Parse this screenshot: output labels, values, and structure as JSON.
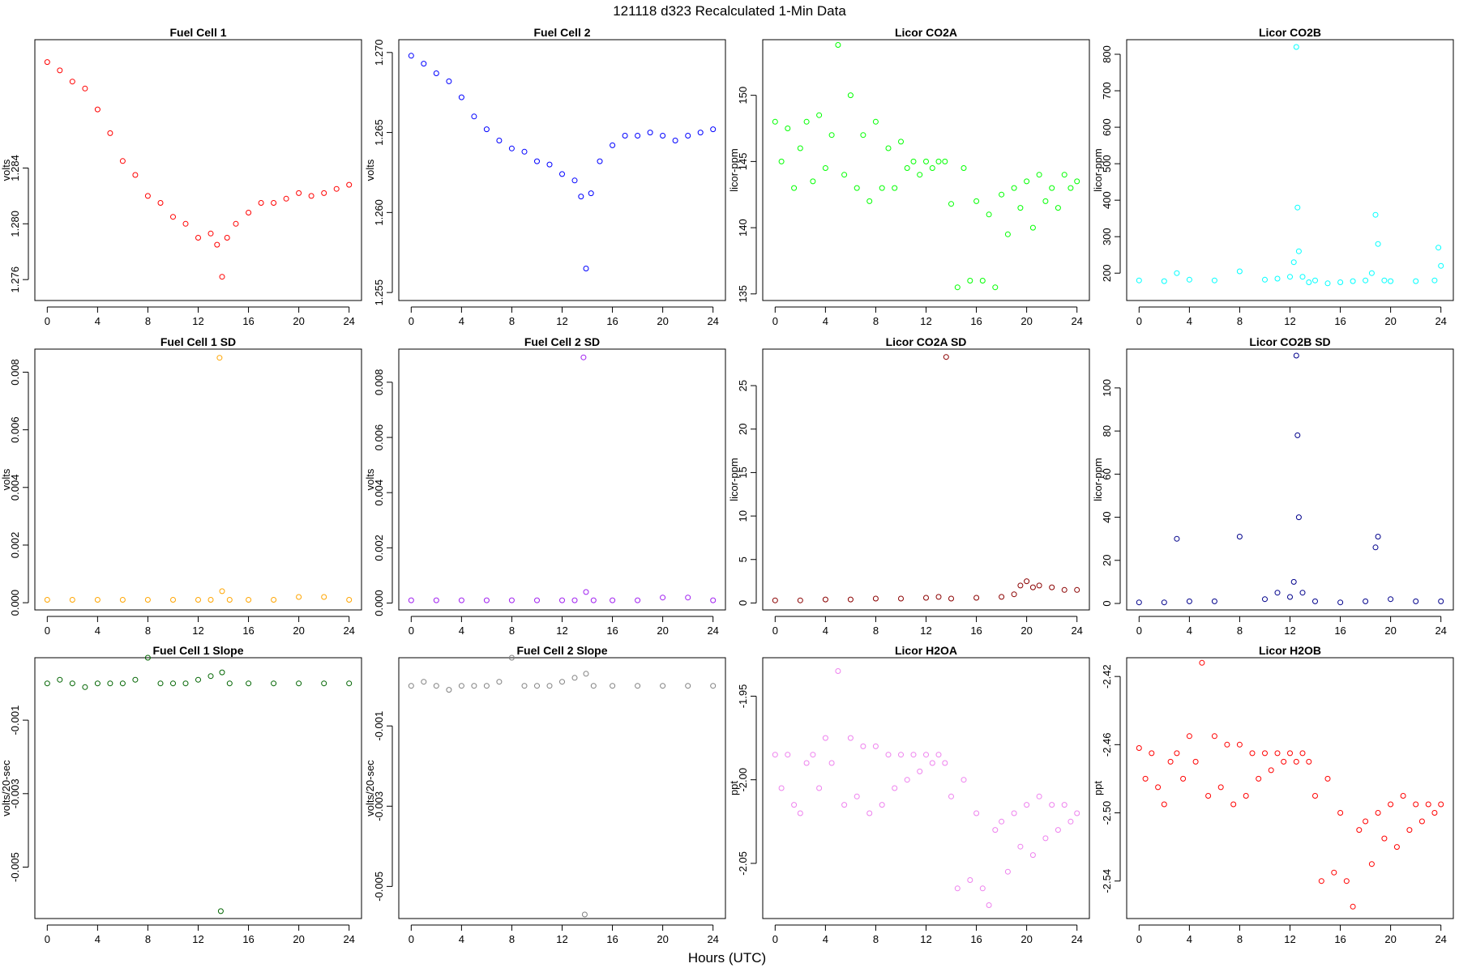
{
  "figure": {
    "title": "121118   d323   Recalculated 1-Min Data",
    "xlabel": "Hours (UTC)"
  },
  "chart_data": [
    {
      "type": "scatter",
      "title": "Fuel Cell 1",
      "ylabel": "volts",
      "color": "#ff0000",
      "xlim": [
        0,
        24
      ],
      "xticks": [
        "0",
        "4",
        "8",
        "12",
        "16",
        "20",
        "24"
      ],
      "ylim": [
        1.2745,
        1.2932
      ],
      "yticks": [
        "1.276",
        "1.280",
        "1.284"
      ],
      "series": [
        {
          "x": [
            0,
            1,
            2,
            3,
            4,
            5,
            6,
            7,
            8,
            9,
            10,
            11,
            12,
            13,
            13.5,
            13.9,
            14.3,
            15,
            16,
            17,
            18,
            19,
            20,
            21,
            22,
            23,
            24
          ],
          "y": [
            1.2916,
            1.291,
            1.2902,
            1.2897,
            1.2882,
            1.2865,
            1.2845,
            1.2835,
            1.282,
            1.2815,
            1.2805,
            1.28,
            1.279,
            1.2793,
            1.2785,
            1.2762,
            1.279,
            1.28,
            1.2808,
            1.2815,
            1.2815,
            1.2818,
            1.2822,
            1.282,
            1.2822,
            1.2825,
            1.2828
          ]
        }
      ]
    },
    {
      "type": "scatter",
      "title": "Fuel Cell 2",
      "ylabel": "volts",
      "color": "#0000ff",
      "xlim": [
        0,
        24
      ],
      "xticks": [
        "0",
        "4",
        "8",
        "12",
        "16",
        "20",
        "24"
      ],
      "ylim": [
        1.2545,
        1.2708
      ],
      "yticks": [
        "1.255",
        "1.260",
        "1.265",
        "1.270"
      ],
      "series": [
        {
          "x": [
            0,
            1,
            2,
            3,
            4,
            5,
            6,
            7,
            8,
            9,
            10,
            11,
            12,
            13,
            13.5,
            13.9,
            14.3,
            15,
            16,
            17,
            18,
            19,
            20,
            21,
            22,
            23,
            24
          ],
          "y": [
            1.2698,
            1.2693,
            1.2687,
            1.2682,
            1.2672,
            1.266,
            1.2652,
            1.2645,
            1.264,
            1.2638,
            1.2632,
            1.263,
            1.2624,
            1.262,
            1.261,
            1.2565,
            1.2612,
            1.2632,
            1.2642,
            1.2648,
            1.2648,
            1.265,
            1.2648,
            1.2645,
            1.2648,
            1.265,
            1.2652
          ]
        }
      ]
    },
    {
      "type": "scatter",
      "title": "Licor CO2A",
      "ylabel": "licor-ppm",
      "color": "#00ff00",
      "xlim": [
        0,
        24
      ],
      "xticks": [
        "0",
        "4",
        "8",
        "12",
        "16",
        "20",
        "24"
      ],
      "ylim": [
        134.5,
        154.2
      ],
      "yticks": [
        "135",
        "140",
        "145",
        "150"
      ],
      "series": [
        {
          "x": [
            0,
            0.5,
            1,
            1.5,
            2,
            2.5,
            3,
            3.5,
            4,
            4.5,
            5,
            5.5,
            6,
            6.5,
            7,
            7.5,
            8,
            8.5,
            9,
            9.5,
            10,
            10.5,
            11,
            11.5,
            12,
            12.5,
            13,
            13.5,
            14,
            14.5,
            15,
            15.5,
            16,
            16.5,
            17,
            17.5,
            18,
            18.5,
            19,
            19.5,
            20,
            20.5,
            21,
            21.5,
            22,
            22.5,
            23,
            23.5,
            24
          ],
          "y": [
            148,
            145,
            147.5,
            143,
            146,
            148,
            143.5,
            148.5,
            144.5,
            147,
            153.8,
            144,
            150,
            143,
            147,
            142,
            148,
            143,
            146,
            143,
            146.5,
            144.5,
            145,
            144,
            145,
            144.5,
            145,
            145,
            141.8,
            135.5,
            144.5,
            136,
            142,
            136,
            141,
            135.5,
            142.5,
            139.5,
            143,
            141.5,
            143.5,
            140,
            144,
            142,
            143,
            141.5,
            144,
            143,
            143.5
          ]
        }
      ]
    },
    {
      "type": "scatter",
      "title": "Licor CO2B",
      "ylabel": "licor-ppm",
      "color": "#00ffff",
      "xlim": [
        0,
        24
      ],
      "xticks": [
        "0",
        "4",
        "8",
        "12",
        "16",
        "20",
        "24"
      ],
      "ylim": [
        125,
        840
      ],
      "yticks": [
        "200",
        "300",
        "400",
        "500",
        "600",
        "700",
        "800"
      ],
      "series": [
        {
          "x": [
            0,
            2,
            3,
            4,
            6,
            8,
            10,
            11,
            12,
            12.3,
            12.5,
            12.6,
            12.7,
            13,
            13.5,
            14,
            15,
            16,
            17,
            18,
            18.5,
            18.8,
            19,
            19.5,
            20,
            22,
            23.5,
            23.8,
            24
          ],
          "y": [
            180,
            178,
            200,
            182,
            180,
            205,
            182,
            185,
            190,
            230,
            820,
            380,
            260,
            190,
            175,
            180,
            172,
            175,
            178,
            180,
            200,
            360,
            280,
            180,
            178,
            178,
            180,
            270,
            220
          ]
        }
      ]
    },
    {
      "type": "scatter",
      "title": "Fuel Cell 1 SD",
      "ylabel": "volts",
      "color": "#ffa500",
      "xlim": [
        0,
        24
      ],
      "xticks": [
        "0",
        "4",
        "8",
        "12",
        "16",
        "20",
        "24"
      ],
      "ylim": [
        -0.00025,
        0.0088
      ],
      "yticks": [
        "0.000",
        "0.002",
        "0.004",
        "0.006",
        "0.008"
      ],
      "series": [
        {
          "x": [
            0,
            2,
            4,
            6,
            8,
            10,
            12,
            13,
            13.7,
            13.9,
            14.5,
            16,
            18,
            20,
            22,
            24
          ],
          "y": [
            0.0001,
            0.0001,
            0.0001,
            0.0001,
            0.0001,
            0.0001,
            0.0001,
            0.0001,
            0.0085,
            0.0004,
            0.0001,
            0.0001,
            0.0001,
            0.0002,
            0.0002,
            0.0001
          ]
        }
      ]
    },
    {
      "type": "scatter",
      "title": "Fuel Cell 2 SD",
      "ylabel": "volts",
      "color": "#a020f0",
      "xlim": [
        0,
        24
      ],
      "xticks": [
        "0",
        "4",
        "8",
        "12",
        "16",
        "20",
        "24"
      ],
      "ylim": [
        -0.00025,
        0.0092
      ],
      "yticks": [
        "0.000",
        "0.002",
        "0.004",
        "0.006",
        "0.008"
      ],
      "series": [
        {
          "x": [
            0,
            2,
            4,
            6,
            8,
            10,
            12,
            13,
            13.7,
            13.9,
            14.5,
            16,
            18,
            20,
            22,
            24
          ],
          "y": [
            0.0001,
            0.0001,
            0.0001,
            0.0001,
            0.0001,
            0.0001,
            0.0001,
            0.0001,
            0.0089,
            0.0004,
            0.0001,
            0.0001,
            0.0001,
            0.0002,
            0.0002,
            0.0001
          ]
        }
      ]
    },
    {
      "type": "scatter",
      "title": "Licor CO2A SD",
      "ylabel": "licor-ppm",
      "color": "#8b0000",
      "xlim": [
        0,
        24
      ],
      "xticks": [
        "0",
        "4",
        "8",
        "12",
        "16",
        "20",
        "24"
      ],
      "ylim": [
        -0.8,
        29.2
      ],
      "yticks": [
        "0",
        "5",
        "10",
        "15",
        "20",
        "25"
      ],
      "series": [
        {
          "x": [
            0,
            2,
            4,
            6,
            8,
            10,
            12,
            13,
            13.6,
            14,
            16,
            18,
            19,
            19.5,
            20,
            20.5,
            21,
            22,
            23,
            24
          ],
          "y": [
            0.3,
            0.3,
            0.4,
            0.4,
            0.5,
            0.5,
            0.6,
            0.7,
            28.3,
            0.5,
            0.6,
            0.7,
            1.0,
            2.0,
            2.5,
            1.8,
            2.0,
            1.8,
            1.5,
            1.5
          ]
        }
      ]
    },
    {
      "type": "scatter",
      "title": "Licor CO2B SD",
      "ylabel": "licor-ppm",
      "color": "#00008b",
      "xlim": [
        0,
        24
      ],
      "xticks": [
        "0",
        "4",
        "8",
        "12",
        "16",
        "20",
        "24"
      ],
      "ylim": [
        -3,
        118
      ],
      "yticks": [
        "0",
        "20",
        "40",
        "60",
        "80",
        "100"
      ],
      "series": [
        {
          "x": [
            0,
            2,
            3,
            4,
            6,
            8,
            10,
            11,
            12,
            12.3,
            12.5,
            12.6,
            12.7,
            13,
            14,
            16,
            18,
            18.8,
            19,
            20,
            22,
            24
          ],
          "y": [
            0.5,
            0.5,
            30,
            1,
            1,
            31,
            2,
            5,
            3,
            10,
            115,
            78,
            40,
            5,
            1,
            0.5,
            1,
            26,
            31,
            2,
            1,
            1
          ]
        }
      ]
    },
    {
      "type": "scatter",
      "title": "Fuel Cell 1 Slope",
      "ylabel": "volts/20-sec",
      "color": "#006400",
      "xlim": [
        0,
        24
      ],
      "xticks": [
        "0",
        "4",
        "8",
        "12",
        "16",
        "20",
        "24"
      ],
      "ylim": [
        -0.0064,
        0.0007
      ],
      "yticks": [
        "-0.005",
        "-0.003",
        "-0.001"
      ],
      "series": [
        {
          "x": [
            0,
            1,
            2,
            3,
            4,
            5,
            6,
            7,
            8,
            9,
            10,
            11,
            12,
            13,
            13.8,
            13.9,
            14.5,
            16,
            18,
            20,
            22,
            24
          ],
          "y": [
            0,
            0.0001,
            0,
            -0.0001,
            0,
            0,
            0,
            0.0001,
            0.0007,
            0,
            0,
            0,
            0.0001,
            0.0002,
            -0.0062,
            0.0003,
            0,
            0,
            0,
            0,
            0,
            0
          ]
        }
      ]
    },
    {
      "type": "scatter",
      "title": "Fuel Cell 2 Slope",
      "ylabel": "volts/20-sec",
      "color": "#808080",
      "xlim": [
        0,
        24
      ],
      "xticks": [
        "0",
        "4",
        "8",
        "12",
        "16",
        "20",
        "24"
      ],
      "ylim": [
        -0.0058,
        0.0007
      ],
      "yticks": [
        "-0.005",
        "-0.003",
        "-0.001"
      ],
      "series": [
        {
          "x": [
            0,
            1,
            2,
            3,
            4,
            5,
            6,
            7,
            8,
            9,
            10,
            11,
            12,
            13,
            13.8,
            13.9,
            14.5,
            16,
            18,
            20,
            22,
            24
          ],
          "y": [
            0,
            0.0001,
            0,
            -0.0001,
            0,
            0,
            0,
            0.0001,
            0.0007,
            0,
            0,
            0,
            0.0001,
            0.0002,
            -0.0057,
            0.0003,
            0,
            0,
            0,
            0,
            0,
            0
          ]
        }
      ]
    },
    {
      "type": "scatter",
      "title": "Licor H2OA",
      "ylabel": "ppt",
      "color": "#ee82ee",
      "xlim": [
        0,
        24
      ],
      "xticks": [
        "0",
        "4",
        "8",
        "12",
        "16",
        "20",
        "24"
      ],
      "ylim": [
        -2.083,
        -1.927
      ],
      "yticks": [
        "-2.05",
        "-2.00",
        "-1.95"
      ],
      "series": [
        {
          "x": [
            0,
            0.5,
            1,
            1.5,
            2,
            2.5,
            3,
            3.5,
            4,
            4.5,
            5,
            5.5,
            6,
            6.5,
            7,
            7.5,
            8,
            8.5,
            9,
            9.5,
            10,
            10.5,
            11,
            11.5,
            12,
            12.5,
            13,
            13.5,
            14,
            14.5,
            15,
            15.5,
            16,
            16.5,
            17,
            17.5,
            18,
            18.5,
            19,
            19.5,
            20,
            20.5,
            21,
            21.5,
            22,
            22.5,
            23,
            23.5,
            24
          ],
          "y": [
            -1.985,
            -2.005,
            -1.985,
            -2.015,
            -2.02,
            -1.99,
            -1.985,
            -2.005,
            -1.975,
            -1.99,
            -1.935,
            -2.015,
            -1.975,
            -2.01,
            -1.98,
            -2.02,
            -1.98,
            -2.015,
            -1.985,
            -2.005,
            -1.985,
            -2.0,
            -1.985,
            -1.995,
            -1.985,
            -1.99,
            -1.985,
            -1.99,
            -2.01,
            -2.065,
            -2.0,
            -2.06,
            -2.02,
            -2.065,
            -2.075,
            -2.03,
            -2.025,
            -2.055,
            -2.02,
            -2.04,
            -2.015,
            -2.045,
            -2.01,
            -2.035,
            -2.015,
            -2.03,
            -2.015,
            -2.025,
            -2.02
          ]
        }
      ]
    },
    {
      "type": "scatter",
      "title": "Licor H2OB",
      "ylabel": "ppt",
      "color": "#ff0000",
      "xlim": [
        0,
        24
      ],
      "xticks": [
        "0",
        "4",
        "8",
        "12",
        "16",
        "20",
        "24"
      ],
      "ylim": [
        -2.562,
        -2.409
      ],
      "yticks": [
        "-2.54",
        "-2.50",
        "-2.46",
        "-2.42"
      ],
      "series": [
        {
          "x": [
            0,
            0.5,
            1,
            1.5,
            2,
            2.5,
            3,
            3.5,
            4,
            4.5,
            5,
            5.5,
            6,
            6.5,
            7,
            7.5,
            8,
            8.5,
            9,
            9.5,
            10,
            10.5,
            11,
            11.5,
            12,
            12.5,
            13,
            13.5,
            14,
            14.5,
            15,
            15.5,
            16,
            16.5,
            17,
            17.5,
            18,
            18.5,
            19,
            19.5,
            20,
            20.5,
            21,
            21.5,
            22,
            22.5,
            23,
            23.5,
            24
          ],
          "y": [
            -2.462,
            -2.48,
            -2.465,
            -2.485,
            -2.495,
            -2.47,
            -2.465,
            -2.48,
            -2.455,
            -2.47,
            -2.412,
            -2.49,
            -2.455,
            -2.485,
            -2.46,
            -2.495,
            -2.46,
            -2.49,
            -2.465,
            -2.48,
            -2.465,
            -2.475,
            -2.465,
            -2.47,
            -2.465,
            -2.47,
            -2.465,
            -2.47,
            -2.49,
            -2.54,
            -2.48,
            -2.535,
            -2.5,
            -2.54,
            -2.555,
            -2.51,
            -2.505,
            -2.53,
            -2.5,
            -2.515,
            -2.495,
            -2.52,
            -2.49,
            -2.51,
            -2.495,
            -2.505,
            -2.495,
            -2.5,
            -2.495
          ]
        }
      ]
    }
  ]
}
